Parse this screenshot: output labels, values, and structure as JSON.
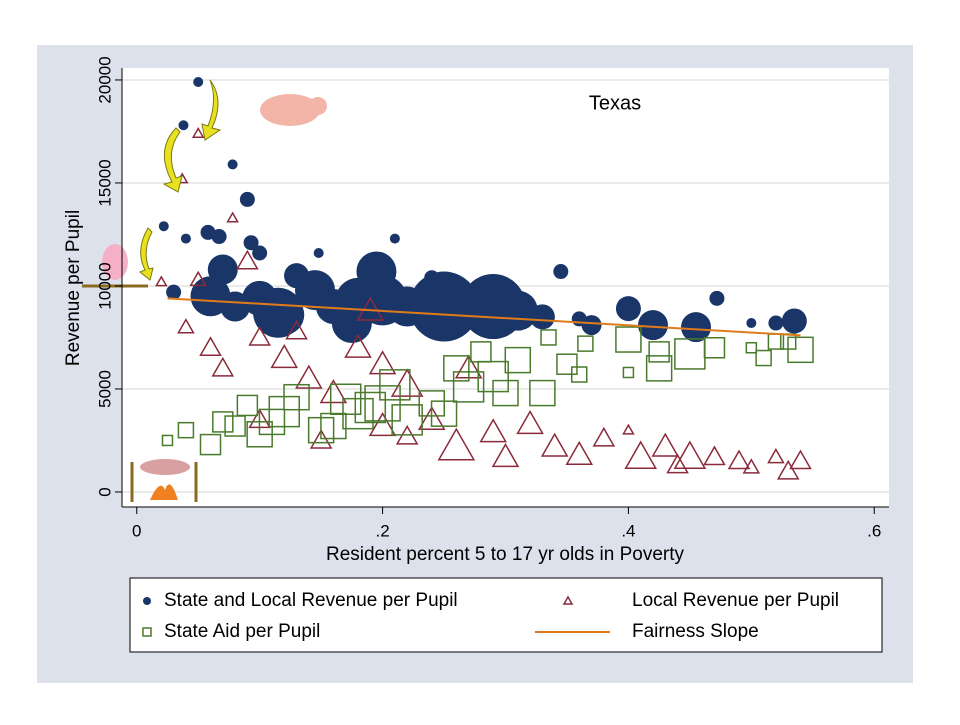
{
  "chart_data": {
    "type": "scatter",
    "annotation": "Texas",
    "x_label": "Resident percent 5 to 17 yr olds in Poverty",
    "y_label": "Revenue per Pupil",
    "xlim": [
      -0.012,
      0.612
    ],
    "ylim": [
      -730,
      20580
    ],
    "xticks": [
      {
        "value": 0,
        "label": "0"
      },
      {
        "value": 0.2,
        "label": ".2"
      },
      {
        "value": 0.4,
        "label": ".4"
      },
      {
        "value": 0.6,
        "label": ".6"
      }
    ],
    "yticks": [
      0,
      5000,
      10000,
      15000,
      20000
    ],
    "grid": true,
    "series": [
      {
        "name": "State and Local Revenue per Pupil",
        "color": "#1a3668",
        "marker": "circle",
        "x": [
          0.022,
          0.038,
          0.05,
          0.04,
          0.058,
          0.067,
          0.078,
          0.09,
          0.093,
          0.1,
          0.07,
          0.06,
          0.08,
          0.1,
          0.12,
          0.13,
          0.145,
          0.148,
          0.16,
          0.18,
          0.195,
          0.2,
          0.21,
          0.22,
          0.24,
          0.25,
          0.265,
          0.29,
          0.31,
          0.33,
          0.345,
          0.36,
          0.4,
          0.42,
          0.455,
          0.472,
          0.5,
          0.52,
          0.535,
          0.37,
          0.03,
          0.115,
          0.175
        ],
        "values": [
          12900,
          17800,
          19900,
          12300,
          12600,
          12400,
          15900,
          14200,
          12100,
          11600,
          10800,
          9500,
          9000,
          9400,
          8600,
          10500,
          9800,
          11600,
          9000,
          9300,
          10700,
          9300,
          12300,
          9000,
          10400,
          9000,
          8800,
          9000,
          8800,
          8500,
          10700,
          8400,
          8900,
          8100,
          8000,
          9400,
          8200,
          8200,
          8300,
          8100,
          9700,
          8700,
          8200
        ],
        "sizes": [
          2,
          2,
          2,
          2,
          3,
          3,
          2,
          3,
          3,
          3,
          6,
          8,
          6,
          7,
          8,
          5,
          8,
          2,
          7,
          9,
          8,
          10,
          2,
          8,
          3,
          14,
          8,
          13,
          8,
          5,
          3,
          3,
          5,
          6,
          6,
          3,
          2,
          3,
          5,
          4,
          3,
          10,
          8
        ]
      },
      {
        "name": "Local Revenue per Pupil",
        "color": "#8b2a3a",
        "marker": "triangle",
        "x": [
          0.02,
          0.037,
          0.05,
          0.078,
          0.04,
          0.05,
          0.06,
          0.07,
          0.09,
          0.1,
          0.12,
          0.13,
          0.14,
          0.16,
          0.18,
          0.19,
          0.2,
          0.22,
          0.24,
          0.26,
          0.27,
          0.29,
          0.3,
          0.32,
          0.34,
          0.36,
          0.38,
          0.4,
          0.41,
          0.43,
          0.44,
          0.45,
          0.47,
          0.49,
          0.5,
          0.52,
          0.53,
          0.54,
          0.1,
          0.15,
          0.2,
          0.22
        ],
        "values": [
          10200,
          15200,
          17400,
          13300,
          8000,
          10300,
          7000,
          6000,
          11200,
          7500,
          6500,
          7800,
          5500,
          4800,
          7000,
          8800,
          6200,
          5200,
          3500,
          2200,
          6000,
          2900,
          1700,
          3300,
          2200,
          1800,
          2600,
          3000,
          1700,
          2200,
          1300,
          1700,
          1700,
          1500,
          1200,
          1700,
          1000,
          1500,
          3500,
          2500,
          3200,
          2700
        ],
        "sizes": [
          2,
          2,
          2,
          2,
          3,
          3,
          4,
          4,
          4,
          4,
          5,
          4,
          5,
          5,
          5,
          5,
          5,
          6,
          5,
          7,
          5,
          5,
          5,
          5,
          5,
          5,
          4,
          2,
          6,
          5,
          4,
          6,
          4,
          4,
          3,
          3,
          4,
          4,
          4,
          4,
          5,
          4
        ]
      },
      {
        "name": "State Aid per Pupil",
        "color": "#4a7a2c",
        "marker": "square",
        "x": [
          0.025,
          0.04,
          0.06,
          0.07,
          0.09,
          0.1,
          0.12,
          0.13,
          0.15,
          0.17,
          0.18,
          0.2,
          0.22,
          0.24,
          0.25,
          0.27,
          0.29,
          0.3,
          0.31,
          0.33,
          0.335,
          0.35,
          0.36,
          0.365,
          0.4,
          0.4,
          0.425,
          0.425,
          0.45,
          0.47,
          0.5,
          0.51,
          0.52,
          0.54,
          0.53,
          0.28,
          0.26,
          0.21,
          0.11,
          0.08,
          0.16,
          0.19
        ],
        "values": [
          2500,
          3000,
          2300,
          3400,
          4200,
          2800,
          3900,
          4600,
          3000,
          4500,
          3800,
          4300,
          3500,
          4300,
          3800,
          5100,
          5600,
          4800,
          6400,
          4800,
          7500,
          6200,
          5700,
          7200,
          5800,
          7400,
          6000,
          6800,
          6700,
          7000,
          7000,
          6500,
          7300,
          6900,
          7300,
          6800,
          6000,
          5200,
          3400,
          3200,
          3200,
          4100
        ],
        "sizes": [
          2,
          3,
          4,
          4,
          4,
          5,
          6,
          5,
          5,
          6,
          6,
          7,
          6,
          5,
          5,
          6,
          6,
          5,
          5,
          5,
          3,
          4,
          3,
          3,
          2,
          5,
          5,
          4,
          6,
          4,
          2,
          3,
          3,
          5,
          3,
          4,
          5,
          6,
          5,
          4,
          5,
          6
        ]
      },
      {
        "name": "Fairness Slope",
        "color": "#e07b1a",
        "marker": "line",
        "x": [
          0.025,
          0.54
        ],
        "values": [
          9400,
          7600
        ]
      }
    ]
  }
}
